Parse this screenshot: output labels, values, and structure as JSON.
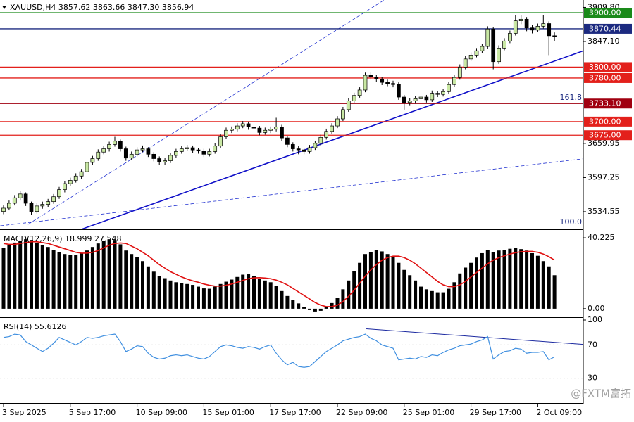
{
  "chart_data": {
    "type": "candlestick",
    "title": "XAUUSD,H4  3857.62 3863.66 3847.30 3856.94",
    "up_color": "#c9e8a4",
    "down_color": "#000000",
    "ohlc": [
      [
        3535,
        3546,
        3530,
        3541
      ],
      [
        3541,
        3555,
        3537,
        3550
      ],
      [
        3550,
        3565,
        3546,
        3560
      ],
      [
        3560,
        3572,
        3555,
        3567
      ],
      [
        3567,
        3570,
        3545,
        3550
      ],
      [
        3550,
        3553,
        3528,
        3535
      ],
      [
        3535,
        3550,
        3531,
        3545
      ],
      [
        3545,
        3553,
        3540,
        3548
      ],
      [
        3548,
        3558,
        3543,
        3553
      ],
      [
        3553,
        3567,
        3549,
        3562
      ],
      [
        3562,
        3580,
        3558,
        3575
      ],
      [
        3575,
        3591,
        3570,
        3586
      ],
      [
        3586,
        3597,
        3581,
        3592
      ],
      [
        3592,
        3605,
        3588,
        3600
      ],
      [
        3600,
        3613,
        3595,
        3608
      ],
      [
        3608,
        3630,
        3604,
        3625
      ],
      [
        3625,
        3637,
        3620,
        3632
      ],
      [
        3632,
        3649,
        3628,
        3644
      ],
      [
        3644,
        3655,
        3640,
        3650
      ],
      [
        3650,
        3663,
        3645,
        3658
      ],
      [
        3658,
        3672,
        3654,
        3664
      ],
      [
        3664,
        3667,
        3645,
        3650
      ],
      [
        3650,
        3654,
        3628,
        3633
      ],
      [
        3633,
        3645,
        3629,
        3640
      ],
      [
        3640,
        3653,
        3636,
        3648
      ],
      [
        3648,
        3656,
        3644,
        3650
      ],
      [
        3650,
        3653,
        3635,
        3640
      ],
      [
        3640,
        3644,
        3627,
        3632
      ],
      [
        3632,
        3636,
        3620,
        3626
      ],
      [
        3626,
        3633,
        3621,
        3628
      ],
      [
        3628,
        3643,
        3624,
        3638
      ],
      [
        3638,
        3650,
        3634,
        3645
      ],
      [
        3645,
        3655,
        3641,
        3650
      ],
      [
        3650,
        3657,
        3646,
        3652
      ],
      [
        3652,
        3656,
        3643,
        3648
      ],
      [
        3648,
        3652,
        3641,
        3646
      ],
      [
        3646,
        3650,
        3635,
        3640
      ],
      [
        3640,
        3650,
        3636,
        3645
      ],
      [
        3645,
        3660,
        3641,
        3655
      ],
      [
        3655,
        3677,
        3651,
        3672
      ],
      [
        3672,
        3689,
        3668,
        3684
      ],
      [
        3684,
        3691,
        3679,
        3686
      ],
      [
        3686,
        3697,
        3682,
        3692
      ],
      [
        3692,
        3701,
        3688,
        3696
      ],
      [
        3696,
        3700,
        3685,
        3690
      ],
      [
        3690,
        3694,
        3683,
        3688
      ],
      [
        3688,
        3692,
        3675,
        3680
      ],
      [
        3680,
        3689,
        3676,
        3684
      ],
      [
        3684,
        3691,
        3679,
        3686
      ],
      [
        3686,
        3707,
        3682,
        3690
      ],
      [
        3690,
        3694,
        3665,
        3670
      ],
      [
        3670,
        3674,
        3653,
        3658
      ],
      [
        3658,
        3662,
        3645,
        3650
      ],
      [
        3650,
        3655,
        3640,
        3648
      ],
      [
        3648,
        3652,
        3640,
        3645
      ],
      [
        3645,
        3657,
        3641,
        3652
      ],
      [
        3652,
        3665,
        3648,
        3660
      ],
      [
        3660,
        3676,
        3656,
        3671
      ],
      [
        3671,
        3687,
        3667,
        3682
      ],
      [
        3682,
        3697,
        3678,
        3692
      ],
      [
        3692,
        3710,
        3688,
        3705
      ],
      [
        3705,
        3727,
        3701,
        3722
      ],
      [
        3722,
        3743,
        3718,
        3738
      ],
      [
        3738,
        3753,
        3734,
        3748
      ],
      [
        3748,
        3763,
        3744,
        3758
      ],
      [
        3758,
        3790,
        3754,
        3785
      ],
      [
        3785,
        3790,
        3777,
        3782
      ],
      [
        3782,
        3786,
        3773,
        3778
      ],
      [
        3778,
        3782,
        3767,
        3772
      ],
      [
        3772,
        3777,
        3765,
        3770
      ],
      [
        3770,
        3775,
        3763,
        3768
      ],
      [
        3768,
        3772,
        3740,
        3745
      ],
      [
        3745,
        3749,
        3722,
        3735
      ],
      [
        3735,
        3743,
        3730,
        3738
      ],
      [
        3738,
        3747,
        3733,
        3742
      ],
      [
        3742,
        3750,
        3737,
        3745
      ],
      [
        3745,
        3749,
        3735,
        3740
      ],
      [
        3740,
        3757,
        3736,
        3752
      ],
      [
        3752,
        3756,
        3745,
        3750
      ],
      [
        3750,
        3760,
        3746,
        3755
      ],
      [
        3755,
        3773,
        3751,
        3768
      ],
      [
        3768,
        3786,
        3764,
        3781
      ],
      [
        3781,
        3805,
        3777,
        3800
      ],
      [
        3800,
        3820,
        3796,
        3815
      ],
      [
        3815,
        3827,
        3811,
        3822
      ],
      [
        3822,
        3835,
        3818,
        3830
      ],
      [
        3830,
        3843,
        3826,
        3838
      ],
      [
        3838,
        3875,
        3834,
        3870
      ],
      [
        3870,
        3874,
        3796,
        3810
      ],
      [
        3810,
        3840,
        3806,
        3835
      ],
      [
        3835,
        3853,
        3831,
        3848
      ],
      [
        3848,
        3867,
        3844,
        3862
      ],
      [
        3862,
        3895,
        3858,
        3885
      ],
      [
        3885,
        3895,
        3879,
        3888
      ],
      [
        3888,
        3892,
        3866,
        3872
      ],
      [
        3872,
        3877,
        3862,
        3868
      ],
      [
        3868,
        3880,
        3864,
        3875
      ],
      [
        3875,
        3895,
        3871,
        3880
      ],
      [
        3880,
        3884,
        3822,
        3857.62
      ],
      [
        3857.62,
        3863.66,
        3847.3,
        3856.94
      ]
    ],
    "ylim": [
      3502.2,
      3923.3
    ],
    "yticks": [
      3534.55,
      3597.25,
      3659.95,
      {
        "value": 3847.1,
        "label": "3847.10"
      },
      {
        "value": 3909.8,
        "label": "3909.80"
      }
    ],
    "xticks": [
      {
        "value": 0,
        "label": "3 Sep 2025"
      },
      {
        "value": 12,
        "label": "5 Sep 17:00"
      },
      {
        "value": 24,
        "label": "10 Sep 09:00"
      },
      {
        "value": 36,
        "label": "15 Sep 01:00"
      },
      {
        "value": 48,
        "label": "17 Sep 17:00"
      },
      {
        "value": 60,
        "label": "22 Sep 09:00"
      },
      {
        "value": 72,
        "label": "25 Sep 01:00"
      },
      {
        "value": 84,
        "label": "29 Sep 17:00"
      },
      {
        "value": 96,
        "label": "2 Oct 09:00"
      }
    ],
    "levels": [
      {
        "value": 3900,
        "label": "3900.00",
        "color": "#1a8a1a"
      },
      {
        "value": 3870.44,
        "label": "3870.44",
        "color": "#1c2a80"
      },
      {
        "value": 3800,
        "label": "3800.00",
        "color": "#e3201b"
      },
      {
        "value": 3780,
        "label": "3780.00",
        "color": "#e3201b"
      },
      {
        "value": 3733.1,
        "label": "3733.10",
        "color": "#a00010"
      },
      {
        "value": 3700,
        "label": "3700.00",
        "color": "#e3201b"
      },
      {
        "value": 3675,
        "label": "3675.00",
        "color": "#e3201b"
      }
    ],
    "trendlines": [
      {
        "points": [
          [
            14,
            3502.2
          ],
          [
            104.2,
            3830
          ]
        ],
        "color": "#1010c8",
        "dashed": false
      },
      {
        "points": [
          [
            4.4,
            3511.2
          ],
          [
            68.4,
            3923.3
          ]
        ],
        "color": "#2030d0",
        "dashed": true
      },
      {
        "points": [
          [
            -0.6,
            3508.6
          ],
          [
            104.2,
            3631.7
          ]
        ],
        "color": "#2030d0",
        "dashed": true
      }
    ],
    "fib": [
      {
        "value": 3733.1,
        "label": "161.8"
      },
      {
        "value": 3505,
        "label": "100.0"
      }
    ],
    "macd": {
      "title": "MACD(12,26,9) 18.999 27.548",
      "ylim": [
        -4.83,
        44.65
      ],
      "yticks": [
        40.225,
        {
          "value": 0,
          "label": "0.00"
        }
      ],
      "signal_color": "#e01010",
      "histogram": [
        34.6,
        36,
        37.5,
        38.5,
        39.4,
        39,
        37.5,
        36,
        35,
        33.4,
        32,
        31,
        30.6,
        30.6,
        31.5,
        33,
        35,
        37,
        38.5,
        39.4,
        39,
        36.5,
        33,
        31,
        29.4,
        27,
        24,
        21,
        18.5,
        17.3,
        16,
        15,
        14.5,
        14,
        13.5,
        12.5,
        11.5,
        11.3,
        12.5,
        14,
        15.3,
        16.5,
        18,
        19.3,
        19.5,
        18.5,
        17,
        16,
        15,
        13,
        10,
        7.2,
        5,
        3,
        1,
        -0.8,
        -1.6,
        -1.2,
        1,
        3.2,
        6,
        11,
        16,
        21.3,
        26,
        31,
        32.2,
        33.4,
        32.5,
        31,
        29.4,
        26,
        22,
        19,
        16,
        12.5,
        11,
        10,
        9.3,
        9.3,
        11.3,
        15,
        20,
        23.3,
        26,
        29,
        31.5,
        33.4,
        32,
        33,
        33.4,
        34,
        34.6,
        33.8,
        33,
        31.5,
        30,
        27,
        24,
        18.999
      ],
      "signal": [
        37,
        36.5,
        36.5,
        37,
        37.5,
        38,
        38,
        37.5,
        37,
        36,
        35,
        34,
        33,
        32,
        31.5,
        31.5,
        32,
        33,
        34.5,
        36,
        37,
        37.3,
        37,
        35.5,
        34,
        32,
        30,
        27.5,
        25,
        23,
        21,
        19.5,
        18,
        16.8,
        15.8,
        15,
        14,
        13.3,
        12.8,
        12.8,
        13.3,
        14,
        15,
        16,
        17,
        17.5,
        17.6,
        17.4,
        17,
        16.2,
        15,
        13.5,
        11.5,
        9.5,
        7.5,
        5.5,
        3.5,
        2,
        1.2,
        1.2,
        2,
        4,
        7,
        10.5,
        14.5,
        18.5,
        22,
        25,
        27.5,
        29,
        29.8,
        29.8,
        29,
        27.5,
        25.5,
        23,
        20.5,
        18,
        15.5,
        13.5,
        12.5,
        12.5,
        13.5,
        15.5,
        18,
        20.5,
        23,
        25.5,
        27.5,
        29,
        30,
        31,
        31.8,
        32.3,
        32.5,
        32.5,
        32,
        31,
        29.5,
        27.548
      ]
    },
    "rsi": {
      "title": "RSI(14) 55.6126",
      "ylim": [
        0,
        100
      ],
      "yticks": [
        100,
        70,
        30
      ],
      "color": "#3f8fe0",
      "trendline": [
        [
          65.2,
          89.4
        ],
        [
          104.2,
          70.6
        ]
      ],
      "values": [
        79,
        80,
        83,
        82,
        74,
        70,
        66,
        62,
        66,
        72,
        79,
        76,
        73,
        70,
        74,
        79,
        78,
        79,
        81,
        82,
        83,
        74,
        62,
        65,
        69,
        68,
        60,
        55,
        53,
        54,
        57,
        58,
        57,
        58,
        56,
        54,
        53,
        56,
        62,
        68,
        70,
        69,
        67,
        66,
        68,
        67,
        65,
        68,
        70,
        60,
        52,
        46,
        49,
        44,
        43,
        44,
        50,
        56,
        62,
        66,
        70,
        75,
        77,
        79,
        80,
        83,
        78,
        75,
        70,
        68,
        66,
        52,
        53,
        54,
        53,
        56,
        55,
        58,
        57,
        61,
        64,
        66,
        69,
        70,
        71,
        74,
        76,
        80,
        53,
        58,
        62,
        63,
        66,
        65,
        60,
        61,
        61,
        62,
        52,
        55.6126
      ]
    },
    "watermark": "@FXTM富拓"
  }
}
